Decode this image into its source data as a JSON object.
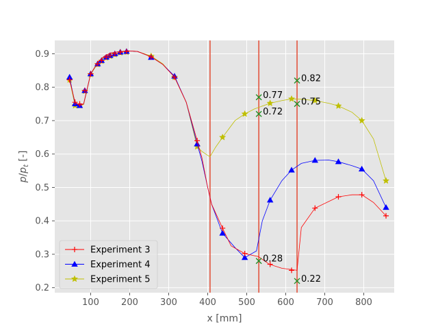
{
  "chart_data": {
    "type": "line",
    "xlabel": "x [mm]",
    "ylabel": "p/p_t [-]",
    "xlim": [
      8,
      878
    ],
    "ylim": [
      0.185,
      0.94
    ],
    "xticks": [
      100,
      200,
      300,
      400,
      500,
      600,
      700,
      800
    ],
    "yticks": [
      0.2,
      0.3,
      0.4,
      0.5,
      0.6,
      0.7,
      0.8,
      0.9
    ],
    "grid": true,
    "legend_position": "lower-left",
    "vlines": [
      {
        "x": 406,
        "color": "#e24a33"
      },
      {
        "x": 531,
        "color": "#e24a33"
      },
      {
        "x": 629,
        "color": "#e24a33"
      }
    ],
    "series": [
      {
        "name": "Experiment 3",
        "color": "#ff0000",
        "marker": "plus",
        "line_x": [
          46,
          60,
          72,
          82,
          100,
          120,
          135,
          150,
          165,
          180,
          195,
          220,
          255,
          285,
          315,
          345,
          373,
          385,
          400,
          410,
          438,
          460,
          495,
          530,
          558,
          590,
          629,
          640,
          675,
          735,
          770,
          795,
          825,
          857
        ],
        "line_y": [
          0.822,
          0.755,
          0.745,
          0.75,
          0.84,
          0.877,
          0.893,
          0.902,
          0.905,
          0.907,
          0.909,
          0.907,
          0.891,
          0.868,
          0.83,
          0.755,
          0.64,
          0.59,
          0.5,
          0.45,
          0.378,
          0.325,
          0.302,
          0.293,
          0.27,
          0.258,
          0.252,
          0.38,
          0.438,
          0.472,
          0.478,
          0.478,
          0.455,
          0.415
        ],
        "marker_x": [
          46,
          60,
          72,
          85,
          100,
          118,
          128,
          140,
          150,
          162,
          176,
          192,
          255,
          315,
          373,
          438,
          495,
          560,
          615,
          675,
          735,
          795,
          857
        ],
        "marker_y": [
          0.822,
          0.755,
          0.75,
          0.79,
          0.84,
          0.87,
          0.88,
          0.89,
          0.895,
          0.9,
          0.905,
          0.907,
          0.891,
          0.83,
          0.64,
          0.378,
          0.302,
          0.27,
          0.252,
          0.438,
          0.472,
          0.478,
          0.415
        ]
      },
      {
        "name": "Experiment 4",
        "color": "#0000ff",
        "marker": "triangle",
        "line_x": [
          46,
          60,
          72,
          82,
          100,
          120,
          135,
          150,
          165,
          180,
          195,
          220,
          255,
          285,
          315,
          345,
          373,
          385,
          400,
          410,
          438,
          470,
          495,
          525,
          540,
          560,
          590,
          615,
          640,
          675,
          710,
          735,
          770,
          795,
          825,
          857
        ],
        "line_y": [
          0.83,
          0.75,
          0.745,
          0.75,
          0.84,
          0.877,
          0.893,
          0.902,
          0.905,
          0.907,
          0.909,
          0.907,
          0.891,
          0.868,
          0.833,
          0.755,
          0.63,
          0.58,
          0.5,
          0.45,
          0.363,
          0.32,
          0.29,
          0.31,
          0.4,
          0.462,
          0.52,
          0.552,
          0.572,
          0.581,
          0.582,
          0.577,
          0.565,
          0.555,
          0.52,
          0.44
        ],
        "marker_x": [
          46,
          60,
          72,
          85,
          100,
          118,
          128,
          140,
          150,
          162,
          176,
          192,
          255,
          315,
          373,
          438,
          495,
          560,
          615,
          675,
          735,
          795,
          857
        ],
        "marker_y": [
          0.83,
          0.75,
          0.745,
          0.79,
          0.84,
          0.87,
          0.88,
          0.89,
          0.895,
          0.9,
          0.905,
          0.907,
          0.889,
          0.833,
          0.63,
          0.363,
          0.29,
          0.462,
          0.552,
          0.581,
          0.577,
          0.555,
          0.44
        ]
      },
      {
        "name": "Experiment 5",
        "color": "#bfbf00",
        "marker": "star",
        "line_x": [
          46,
          60,
          72,
          82,
          100,
          120,
          135,
          150,
          165,
          180,
          195,
          220,
          255,
          285,
          315,
          345,
          373,
          385,
          400,
          406,
          420,
          438,
          470,
          495,
          520,
          560,
          590,
          615,
          640,
          675,
          710,
          735,
          770,
          795,
          825,
          857
        ],
        "line_y": [
          0.822,
          0.745,
          0.745,
          0.748,
          0.838,
          0.875,
          0.89,
          0.9,
          0.905,
          0.907,
          0.909,
          0.907,
          0.893,
          0.87,
          0.83,
          0.755,
          0.622,
          0.608,
          0.596,
          0.592,
          0.62,
          0.65,
          0.7,
          0.72,
          0.735,
          0.752,
          0.76,
          0.765,
          0.764,
          0.76,
          0.752,
          0.744,
          0.725,
          0.7,
          0.645,
          0.52
        ],
        "marker_x": [
          46,
          60,
          72,
          85,
          100,
          118,
          128,
          140,
          150,
          162,
          176,
          192,
          255,
          315,
          373,
          438,
          495,
          560,
          615,
          675,
          735,
          795,
          857
        ],
        "marker_y": [
          0.822,
          0.745,
          0.745,
          0.788,
          0.838,
          0.868,
          0.878,
          0.888,
          0.893,
          0.898,
          0.903,
          0.905,
          0.893,
          0.83,
          0.622,
          0.65,
          0.72,
          0.752,
          0.765,
          0.76,
          0.744,
          0.7,
          0.52
        ]
      }
    ],
    "annotations": [
      {
        "x": 531,
        "y": 0.77,
        "label": "0.77"
      },
      {
        "x": 531,
        "y": 0.72,
        "label": "0.72"
      },
      {
        "x": 531,
        "y": 0.28,
        "label": "0.28"
      },
      {
        "x": 629,
        "y": 0.82,
        "label": "0.82"
      },
      {
        "x": 629,
        "y": 0.75,
        "label": "0.75"
      },
      {
        "x": 629,
        "y": 0.22,
        "label": "0.22"
      }
    ],
    "annotation_marker_color": "#228b22",
    "colors": {
      "plot_background": "#e5e5e5",
      "grid": "#ffffff",
      "tick_text": "#555555"
    }
  }
}
